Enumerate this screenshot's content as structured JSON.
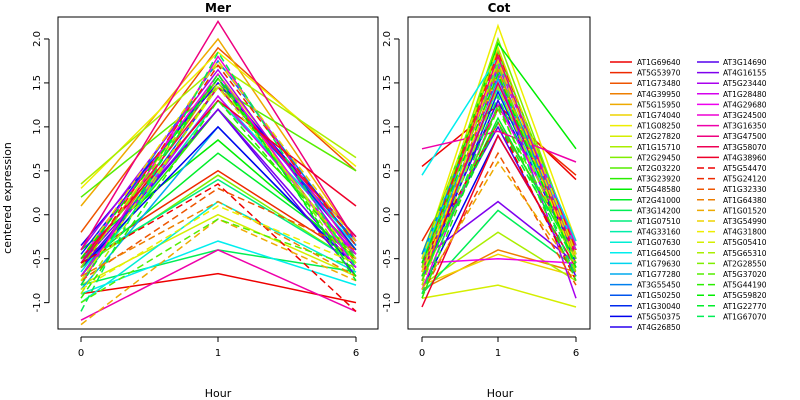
{
  "figure": {
    "ylabel": "centered expression",
    "xlabel": "Hour"
  },
  "chart_data": [
    {
      "type": "line",
      "title": "Mer",
      "xlabel": "Hour",
      "ylabel": "centered expression",
      "x": [
        "0",
        "1",
        "6"
      ],
      "ylim": [
        -1.3,
        2.25
      ],
      "yticks": [
        -1.0,
        -0.5,
        0.0,
        0.5,
        1.0,
        1.5,
        2.0
      ],
      "series": [
        {
          "name": "AT1G69640",
          "values": [
            -0.9,
            -0.67,
            -1.0
          ]
        },
        {
          "name": "AT5G53970",
          "values": [
            -0.5,
            0.5,
            -0.5
          ]
        },
        {
          "name": "AT1G73480",
          "values": [
            -0.2,
            1.9,
            0.5
          ]
        },
        {
          "name": "AT4G39950",
          "values": [
            -0.7,
            1.55,
            -0.55
          ]
        },
        {
          "name": "AT5G15950",
          "values": [
            0.1,
            2.0,
            -0.3
          ]
        },
        {
          "name": "AT1G74040",
          "values": [
            -0.6,
            1.6,
            -0.4
          ]
        },
        {
          "name": "AT1G08250",
          "values": [
            0.3,
            1.85,
            0.55
          ]
        },
        {
          "name": "AT2G27820",
          "values": [
            -0.8,
            0.0,
            -0.7
          ]
        },
        {
          "name": "AT1G15710",
          "values": [
            0.35,
            1.7,
            0.65
          ]
        },
        {
          "name": "AT2G29450",
          "values": [
            -0.6,
            0.45,
            -0.55
          ]
        },
        {
          "name": "AT2G03220",
          "values": [
            0.2,
            1.45,
            0.5
          ]
        },
        {
          "name": "AT3G23920",
          "values": [
            -0.7,
            1.2,
            -0.4
          ]
        },
        {
          "name": "AT5G48580",
          "values": [
            -0.4,
            0.85,
            -0.5
          ]
        },
        {
          "name": "AT2G41000",
          "values": [
            -0.6,
            0.7,
            -0.45
          ]
        },
        {
          "name": "AT3G14200",
          "values": [
            -0.8,
            -0.4,
            -0.65
          ]
        },
        {
          "name": "AT1G07510",
          "values": [
            -0.55,
            0.4,
            -0.55
          ]
        },
        {
          "name": "AT4G33160",
          "values": [
            -0.75,
            1.3,
            -0.3
          ]
        },
        {
          "name": "AT1G07630",
          "values": [
            -1.0,
            0.15,
            -0.65
          ]
        },
        {
          "name": "AT1G64500",
          "values": [
            -0.9,
            -0.3,
            -0.8
          ]
        },
        {
          "name": "AT1G79630",
          "values": [
            -0.65,
            1.35,
            -0.35
          ]
        },
        {
          "name": "AT1G77280",
          "values": [
            -0.85,
            1.0,
            -0.6
          ]
        },
        {
          "name": "AT3G55450",
          "values": [
            -0.55,
            1.75,
            -0.35
          ]
        },
        {
          "name": "AT1G50250",
          "values": [
            -0.7,
            1.45,
            -0.3
          ]
        },
        {
          "name": "AT1G30040",
          "values": [
            -0.45,
            1.55,
            -0.4
          ]
        },
        {
          "name": "AT5G50375",
          "values": [
            -0.6,
            1.0,
            -0.6
          ]
        },
        {
          "name": "AT4G26850",
          "values": [
            -0.35,
            1.5,
            -0.25
          ]
        },
        {
          "name": "AT3G14690",
          "values": [
            -0.6,
            1.2,
            -0.7
          ]
        },
        {
          "name": "AT4G16155",
          "values": [
            -0.55,
            1.2,
            -0.6
          ]
        },
        {
          "name": "AT5G23440",
          "values": [
            -0.4,
            1.65,
            -0.5
          ]
        },
        {
          "name": "AT1G28480",
          "values": [
            -0.7,
            1.35,
            -0.45
          ]
        },
        {
          "name": "AT4G29680",
          "values": [
            -0.5,
            1.6,
            -0.6
          ]
        },
        {
          "name": "AT3G24500",
          "values": [
            -0.8,
            1.8,
            -0.45
          ]
        },
        {
          "name": "AT3G16350",
          "values": [
            -1.2,
            -0.4,
            -1.1
          ]
        },
        {
          "name": "AT3G47500",
          "values": [
            -0.4,
            2.2,
            -0.3
          ]
        },
        {
          "name": "AT3G58070",
          "values": [
            -0.55,
            1.45,
            -0.25
          ]
        },
        {
          "name": "AT4G38960",
          "values": [
            -0.5,
            1.3,
            0.1
          ]
        },
        {
          "name": "AT5G54470",
          "values": [
            -0.55,
            0.35,
            -1.1
          ]
        },
        {
          "name": "AT5G24120",
          "values": [
            -0.6,
            1.7,
            -0.35
          ]
        },
        {
          "name": "AT1G32330",
          "values": [
            -0.75,
            0.3,
            -0.4
          ]
        },
        {
          "name": "AT1G64380",
          "values": [
            -0.7,
            0.15,
            -0.7
          ]
        },
        {
          "name": "AT1G01520",
          "values": [
            -1.25,
            -0.05,
            -0.75
          ]
        },
        {
          "name": "AT3G54990",
          "values": [
            -0.5,
            1.75,
            -0.3
          ]
        },
        {
          "name": "AT4G31800",
          "values": [
            -0.85,
            0.1,
            -0.55
          ]
        },
        {
          "name": "AT5G05410",
          "values": [
            -0.75,
            1.45,
            -0.5
          ]
        },
        {
          "name": "AT5G65310",
          "values": [
            -0.9,
            1.5,
            -0.55
          ]
        },
        {
          "name": "AT2G28550",
          "values": [
            -0.6,
            1.55,
            -0.65
          ]
        },
        {
          "name": "AT5G37020",
          "values": [
            -1.0,
            -0.05,
            -0.6
          ]
        },
        {
          "name": "AT5G44190",
          "values": [
            -0.95,
            1.3,
            -0.5
          ]
        },
        {
          "name": "AT5G59820",
          "values": [
            -0.5,
            1.55,
            -0.7
          ]
        },
        {
          "name": "AT1G22770",
          "values": [
            -0.8,
            1.6,
            -0.75
          ]
        },
        {
          "name": "AT1G67070",
          "values": [
            -1.1,
            1.85,
            -0.6
          ]
        }
      ]
    },
    {
      "type": "line",
      "title": "Cot",
      "xlabel": "Hour",
      "ylabel": "",
      "x": [
        "0",
        "1",
        "6"
      ],
      "ylim": [
        -1.3,
        2.25
      ],
      "yticks": [
        -1.0,
        -0.5,
        0.0,
        0.5,
        1.0,
        1.5,
        2.0
      ],
      "series": [
        {
          "name": "AT1G69640",
          "values": [
            0.55,
            1.25,
            0.4
          ]
        },
        {
          "name": "AT5G53970",
          "values": [
            -0.3,
            1.2,
            0.45
          ]
        },
        {
          "name": "AT1G73480",
          "values": [
            -0.6,
            1.05,
            -0.4
          ]
        },
        {
          "name": "AT4G39950",
          "values": [
            -0.85,
            -0.4,
            -0.65
          ]
        },
        {
          "name": "AT5G15950",
          "values": [
            -0.7,
            1.9,
            -0.5
          ]
        },
        {
          "name": "AT1G74040",
          "values": [
            -0.8,
            -0.45,
            -0.7
          ]
        },
        {
          "name": "AT1G08250",
          "values": [
            -0.5,
            2.15,
            -0.3
          ]
        },
        {
          "name": "AT2G27820",
          "values": [
            -0.95,
            -0.8,
            -1.05
          ]
        },
        {
          "name": "AT1G15710",
          "values": [
            -0.8,
            -0.2,
            -0.75
          ]
        },
        {
          "name": "AT2G29450",
          "values": [
            -0.6,
            2.0,
            -0.4
          ]
        },
        {
          "name": "AT2G03220",
          "values": [
            -0.45,
            1.85,
            -0.35
          ]
        },
        {
          "name": "AT3G23920",
          "values": [
            -0.7,
            1.6,
            -0.45
          ]
        },
        {
          "name": "AT5G48580",
          "values": [
            -0.65,
            1.95,
            0.75
          ]
        },
        {
          "name": "AT2G41000",
          "values": [
            -0.7,
            1.1,
            -0.5
          ]
        },
        {
          "name": "AT3G14200",
          "values": [
            -0.9,
            0.05,
            -0.6
          ]
        },
        {
          "name": "AT1G07510",
          "values": [
            -0.55,
            1.75,
            -0.5
          ]
        },
        {
          "name": "AT4G33160",
          "values": [
            -0.6,
            1.45,
            -0.55
          ]
        },
        {
          "name": "AT1G07630",
          "values": [
            -0.75,
            1.5,
            -0.35
          ]
        },
        {
          "name": "AT1G64500",
          "values": [
            0.45,
            1.8,
            -0.45
          ]
        },
        {
          "name": "AT1G79630",
          "values": [
            -0.5,
            1.7,
            -0.3
          ]
        },
        {
          "name": "AT1G77280",
          "values": [
            -0.6,
            1.55,
            -0.4
          ]
        },
        {
          "name": "AT3G55450",
          "values": [
            -0.45,
            1.65,
            -0.45
          ]
        },
        {
          "name": "AT1G50250",
          "values": [
            -0.7,
            1.5,
            -0.5
          ]
        },
        {
          "name": "AT1G30040",
          "values": [
            -0.75,
            1.4,
            -0.55
          ]
        },
        {
          "name": "AT5G50375",
          "values": [
            -0.85,
            0.9,
            -0.6
          ]
        },
        {
          "name": "AT4G26850",
          "values": [
            -0.65,
            1.3,
            -0.45
          ]
        },
        {
          "name": "AT3G14690",
          "values": [
            -0.55,
            1.0,
            -0.7
          ]
        },
        {
          "name": "AT4G16155",
          "values": [
            -0.5,
            0.15,
            -0.55
          ]
        },
        {
          "name": "AT5G23440",
          "values": [
            -0.75,
            1.6,
            -0.95
          ]
        },
        {
          "name": "AT1G28480",
          "values": [
            -0.6,
            1.7,
            -0.35
          ]
        },
        {
          "name": "AT4G29680",
          "values": [
            -0.55,
            -0.5,
            -0.55
          ]
        },
        {
          "name": "AT3G24500",
          "values": [
            -0.85,
            1.25,
            -0.4
          ]
        },
        {
          "name": "AT3G16350",
          "values": [
            0.75,
            0.95,
            0.6
          ]
        },
        {
          "name": "AT3G47500",
          "values": [
            -0.65,
            1.8,
            -0.5
          ]
        },
        {
          "name": "AT3G58070",
          "values": [
            -0.7,
            1.5,
            -0.45
          ]
        },
        {
          "name": "AT4G38960",
          "values": [
            -1.05,
            0.9,
            -0.6
          ]
        },
        {
          "name": "AT5G54470",
          "values": [
            -0.55,
            1.05,
            -0.75
          ]
        },
        {
          "name": "AT5G24120",
          "values": [
            -0.6,
            1.85,
            -0.4
          ]
        },
        {
          "name": "AT1G32330",
          "values": [
            -0.9,
            0.7,
            -0.8
          ]
        },
        {
          "name": "AT1G64380",
          "values": [
            -0.75,
            1.65,
            -0.55
          ]
        },
        {
          "name": "AT1G01520",
          "values": [
            -0.85,
            0.6,
            -0.65
          ]
        },
        {
          "name": "AT3G54990",
          "values": [
            -0.65,
            1.75,
            -0.5
          ]
        },
        {
          "name": "AT4G31800",
          "values": [
            -0.7,
            1.6,
            -0.55
          ]
        },
        {
          "name": "AT5G05410",
          "values": [
            -0.5,
            1.9,
            -0.45
          ]
        },
        {
          "name": "AT5G65310",
          "values": [
            -0.8,
            1.45,
            -0.6
          ]
        },
        {
          "name": "AT2G28550",
          "values": [
            -0.6,
            1.7,
            -0.65
          ]
        },
        {
          "name": "AT5G37020",
          "values": [
            -0.75,
            1.2,
            -0.5
          ]
        },
        {
          "name": "AT5G44190",
          "values": [
            -0.95,
            1.25,
            -0.75
          ]
        },
        {
          "name": "AT5G59820",
          "values": [
            -0.55,
            1.6,
            -0.6
          ]
        },
        {
          "name": "AT1G22770",
          "values": [
            -0.7,
            1.05,
            -0.55
          ]
        },
        {
          "name": "AT1G67070",
          "values": [
            -0.9,
            1.35,
            -0.7
          ]
        }
      ]
    }
  ],
  "legend": {
    "placement": "right",
    "colors": [
      "#ee0000",
      "#ee2a00",
      "#ee5500",
      "#ee7f00",
      "#eeaa00",
      "#eed400",
      "#eeee00",
      "#d4ee00",
      "#aaee00",
      "#7fee00",
      "#55ee00",
      "#2aee00",
      "#00ee00",
      "#00ee2a",
      "#00ee55",
      "#00ee7f",
      "#00eeaa",
      "#00eed4",
      "#00eeee",
      "#00d4ee",
      "#00aaee",
      "#007fee",
      "#0055ee",
      "#002aee",
      "#0000ee",
      "#2a00ee",
      "#5500ee",
      "#7f00ee",
      "#aa00ee",
      "#d400ee",
      "#ee00ee",
      "#ee00d4",
      "#ee00aa",
      "#ee007f",
      "#ee0055",
      "#ee002a"
    ]
  }
}
